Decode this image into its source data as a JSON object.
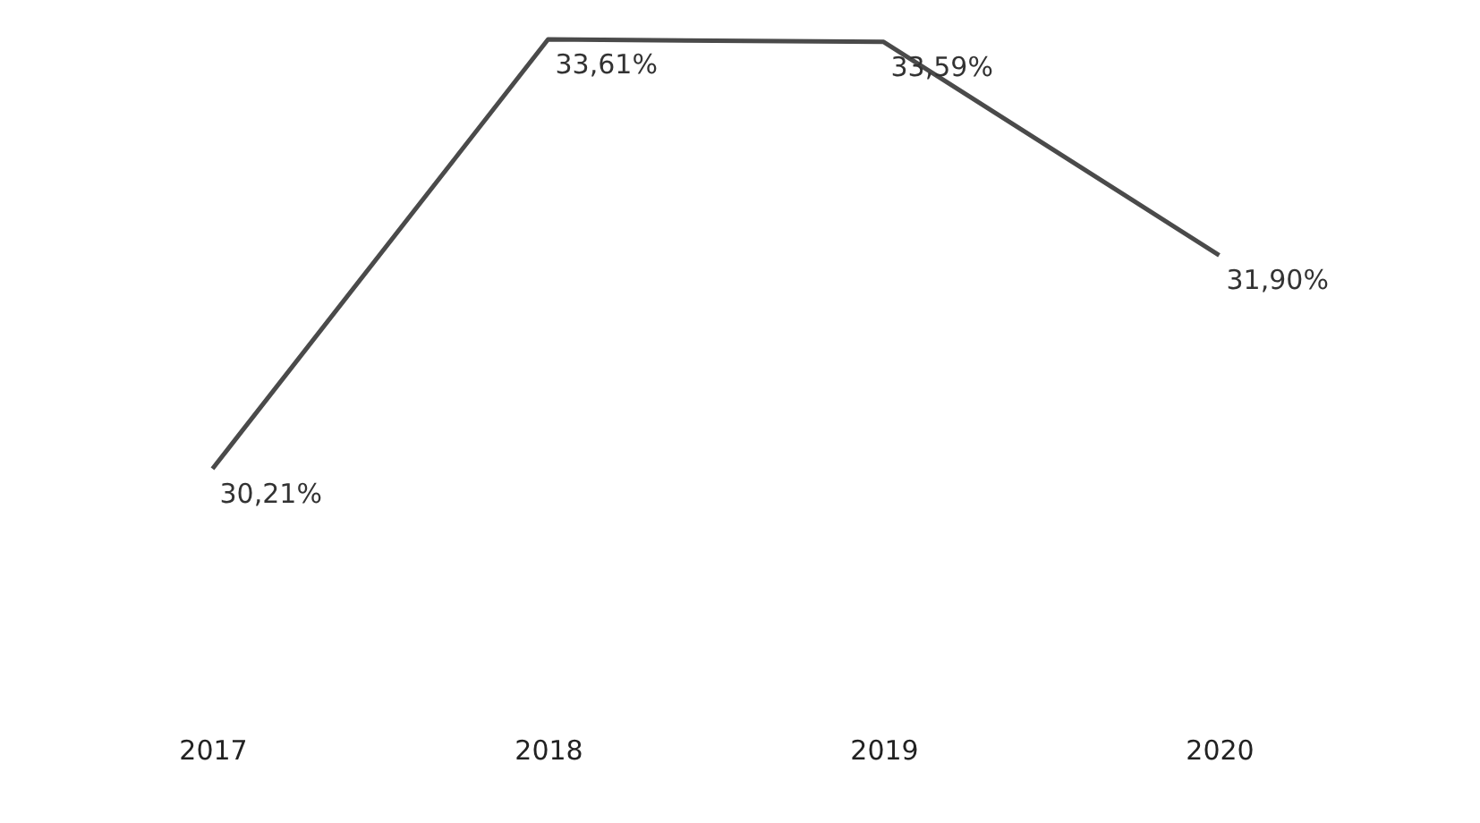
{
  "chart_data": {
    "type": "line",
    "categories": [
      "2017",
      "2018",
      "2019",
      "2020"
    ],
    "series": [
      {
        "color": "#4a4a4a",
        "values": [
          30.21,
          33.61,
          33.59,
          31.9
        ],
        "value_labels": [
          "30,21%",
          "33,61%",
          "33,59%",
          "31,90%"
        ]
      }
    ],
    "grid": false,
    "marker": "none",
    "line_style": "solid"
  }
}
